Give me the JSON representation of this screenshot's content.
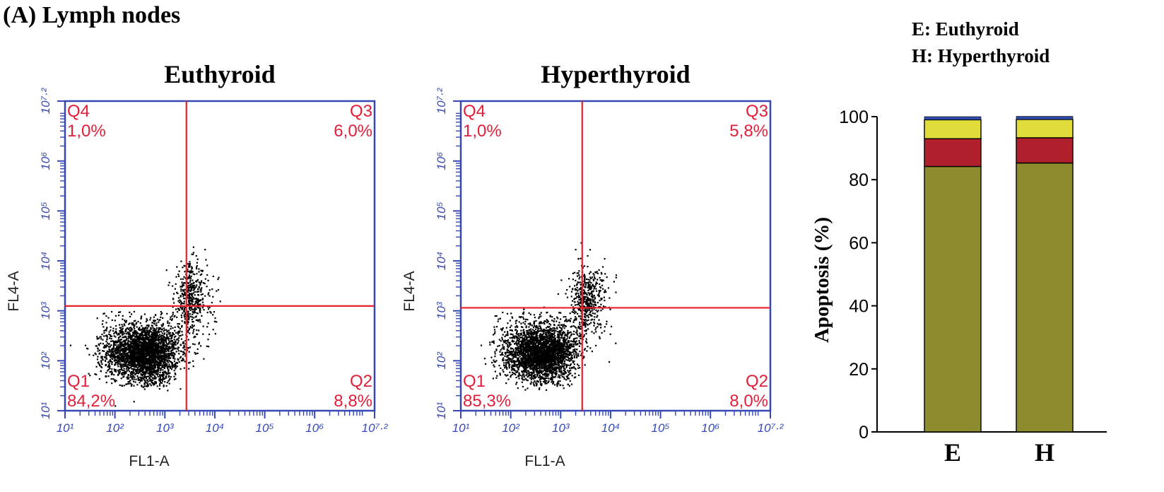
{
  "figure": {
    "panel_label": "(A) Lymph nodes",
    "legend": [
      "E: Euthyroid",
      "H: Hyperthyroid"
    ]
  },
  "colors": {
    "axis_blue": "#3548b5",
    "gate_red": "#e8202a",
    "quadrant_text": "#e0203a",
    "dots": "#000000",
    "bar_q1": "#8e8a2e",
    "bar_q2": "#b0202c",
    "bar_q3": "#e0dc3c",
    "bar_q4": "#2f4aa8"
  },
  "chart_data": [
    {
      "type": "scatter",
      "title": "Euthyroid",
      "xlabel": "FL1-A",
      "ylabel": "FL4-A",
      "log_scale": true,
      "xlim": [
        "10^1",
        "10^7.2"
      ],
      "ylim": [
        "10^1",
        "10^7.2"
      ],
      "x_ticks": [
        "10¹",
        "10²",
        "10³",
        "10⁴",
        "10⁵",
        "10⁶",
        "10⁷·²"
      ],
      "y_ticks": [
        "10¹",
        "10²",
        "10³",
        "10⁴",
        "10⁵",
        "10⁶",
        "10⁷·²"
      ],
      "gate": {
        "x": 2700,
        "y": 1250
      },
      "quadrants": [
        {
          "name": "Q4",
          "value": "1,0%",
          "position": "top-left"
        },
        {
          "name": "Q3",
          "value": "6,0%",
          "position": "top-right"
        },
        {
          "name": "Q1",
          "value": "84,2%",
          "position": "bottom-left"
        },
        {
          "name": "Q2",
          "value": "8,8%",
          "position": "bottom-right"
        }
      ]
    },
    {
      "type": "scatter",
      "title": "Hyperthyroid",
      "xlabel": "FL1-A",
      "ylabel": "FL4-A",
      "log_scale": true,
      "xlim": [
        "10^1",
        "10^7.2"
      ],
      "ylim": [
        "10^1",
        "10^7.2"
      ],
      "x_ticks": [
        "10¹",
        "10²",
        "10³",
        "10⁴",
        "10⁵",
        "10⁶",
        "10⁷·²"
      ],
      "y_ticks": [
        "10¹",
        "10²",
        "10³",
        "10⁴",
        "10⁵",
        "10⁶",
        "10⁷·²"
      ],
      "gate": {
        "x": 2700,
        "y": 1150
      },
      "quadrants": [
        {
          "name": "Q4",
          "value": "1,0%",
          "position": "top-left"
        },
        {
          "name": "Q3",
          "value": "5,8%",
          "position": "top-right"
        },
        {
          "name": "Q1",
          "value": "85,3%",
          "position": "bottom-left"
        },
        {
          "name": "Q2",
          "value": "8,0%",
          "position": "bottom-right"
        }
      ]
    },
    {
      "type": "bar",
      "stacked": true,
      "categories": [
        "E",
        "H"
      ],
      "ylabel": "Apoptosis (%)",
      "ylim": [
        0,
        100
      ],
      "y_ticks": [
        0,
        20,
        40,
        60,
        80,
        100
      ],
      "series": [
        {
          "values": [
            84.2,
            85.3
          ]
        },
        {
          "values": [
            8.8,
            8.0
          ]
        },
        {
          "values": [
            6.0,
            5.8
          ]
        },
        {
          "values": [
            1.0,
            1.0
          ]
        }
      ]
    }
  ]
}
